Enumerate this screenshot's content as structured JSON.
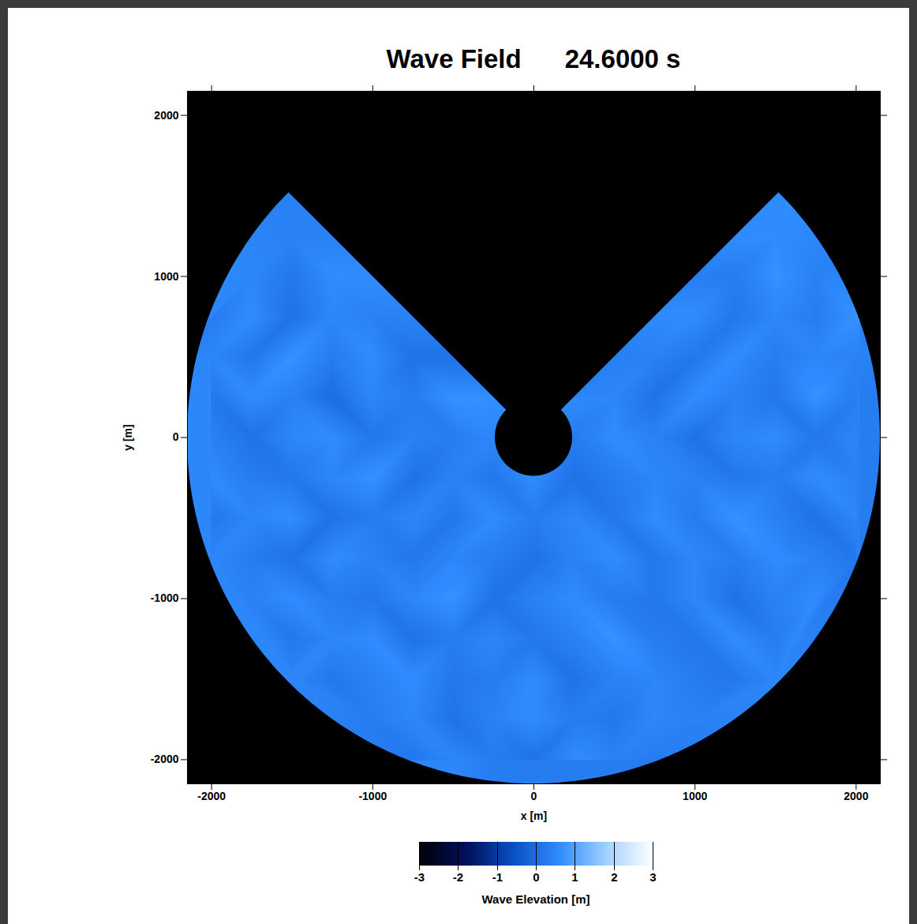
{
  "chart_data": {
    "type": "heatmap",
    "title": "Wave Field      24.6000 s",
    "xlabel": "x [m]",
    "ylabel": "y [m]",
    "xlim": [
      -2150,
      2150
    ],
    "ylim": [
      -2150,
      2150
    ],
    "xticks": [
      -2000,
      -1000,
      0,
      1000,
      2000
    ],
    "yticks": [
      -2000,
      -1000,
      0,
      1000,
      2000
    ],
    "x": [
      -2000,
      -1750,
      -1500,
      -1250,
      -1000,
      -750,
      -500,
      -250,
      0,
      250,
      500,
      750,
      1000,
      1250,
      1500,
      1750,
      2000
    ],
    "y": [
      2000,
      1750,
      1500,
      1250,
      1000,
      750,
      500,
      250,
      0,
      -250,
      -500,
      -750,
      -1000,
      -1250,
      -1500,
      -1750,
      -2000
    ],
    "values": [
      [
        null,
        null,
        null,
        null,
        null,
        null,
        null,
        null,
        null,
        null,
        null,
        null,
        null,
        null,
        null,
        null,
        null
      ],
      [
        null,
        null,
        null,
        null,
        null,
        null,
        null,
        null,
        null,
        null,
        null,
        null,
        null,
        null,
        null,
        null,
        null
      ],
      [
        null,
        null,
        null,
        null,
        null,
        null,
        null,
        null,
        null,
        null,
        null,
        null,
        null,
        null,
        null,
        null,
        null
      ],
      [
        null,
        null,
        0.4,
        null,
        null,
        null,
        null,
        null,
        null,
        null,
        null,
        null,
        null,
        null,
        0.6,
        null,
        null
      ],
      [
        null,
        0.5,
        0.2,
        0.6,
        null,
        null,
        null,
        null,
        null,
        null,
        null,
        null,
        null,
        0.3,
        0.7,
        0.4,
        null
      ],
      [
        0.3,
        0.6,
        0.1,
        0.5,
        0.4,
        null,
        null,
        null,
        null,
        null,
        null,
        null,
        0.6,
        0.2,
        0.5,
        0.3,
        0.7
      ],
      [
        0.5,
        0.2,
        0.7,
        0.3,
        0.6,
        0.1,
        null,
        null,
        null,
        null,
        null,
        0.4,
        0.2,
        0.6,
        0.3,
        0.5,
        0.4
      ],
      [
        0.2,
        0.6,
        0.4,
        0.0,
        0.5,
        0.3,
        0.7,
        null,
        null,
        null,
        0.5,
        0.1,
        0.6,
        0.4,
        0.2,
        0.7,
        0.3
      ],
      [
        0.4,
        0.1,
        0.5,
        0.6,
        0.2,
        0.4,
        0.3,
        0.5,
        null,
        0.3,
        0.6,
        0.4,
        0.1,
        0.5,
        0.6,
        0.2,
        0.5
      ],
      [
        0.6,
        0.3,
        0.2,
        0.5,
        0.7,
        0.1,
        0.4,
        0.2,
        0.6,
        0.1,
        0.3,
        0.5,
        0.4,
        0.2,
        0.3,
        0.6,
        0.4
      ],
      [
        0.2,
        0.5,
        0.6,
        0.1,
        0.3,
        0.5,
        0.2,
        0.6,
        0.3,
        0.5,
        0.2,
        0.6,
        0.3,
        0.7,
        0.4,
        0.1,
        0.5
      ],
      [
        0.5,
        0.3,
        0.1,
        0.6,
        0.4,
        0.2,
        0.5,
        0.3,
        0.1,
        0.4,
        0.6,
        0.2,
        0.5,
        0.3,
        0.6,
        0.4,
        0.2
      ],
      [
        null,
        0.4,
        0.6,
        0.3,
        0.2,
        0.5,
        0.7,
        0.1,
        0.4,
        0.6,
        0.3,
        0.2,
        0.5,
        0.1,
        0.4,
        0.6,
        null
      ],
      [
        null,
        null,
        0.2,
        0.5,
        0.6,
        0.1,
        0.3,
        0.5,
        0.2,
        0.4,
        0.7,
        0.3,
        0.2,
        0.6,
        0.3,
        null,
        null
      ],
      [
        null,
        null,
        0.5,
        0.2,
        0.4,
        0.6,
        0.2,
        0.3,
        0.6,
        0.1,
        0.4,
        0.5,
        0.3,
        0.2,
        0.5,
        null,
        null
      ],
      [
        null,
        null,
        null,
        null,
        0.3,
        0.5,
        0.1,
        0.4,
        0.6,
        0.3,
        0.2,
        0.5,
        0.4,
        null,
        null,
        null,
        null
      ],
      [
        null,
        null,
        null,
        null,
        null,
        0.2,
        0.5,
        0.3,
        0.1,
        0.6,
        0.4,
        0.3,
        null,
        null,
        null,
        null,
        null
      ]
    ],
    "region": {
      "outer_radius": 2150,
      "inner_radius": 240,
      "gap_angles": [
        45,
        135
      ]
    },
    "colorbar": {
      "label": "Wave Elevation [m]",
      "range": [
        -3,
        3
      ],
      "ticks": [
        -3,
        -2,
        -1,
        0,
        1,
        2,
        3
      ]
    }
  }
}
